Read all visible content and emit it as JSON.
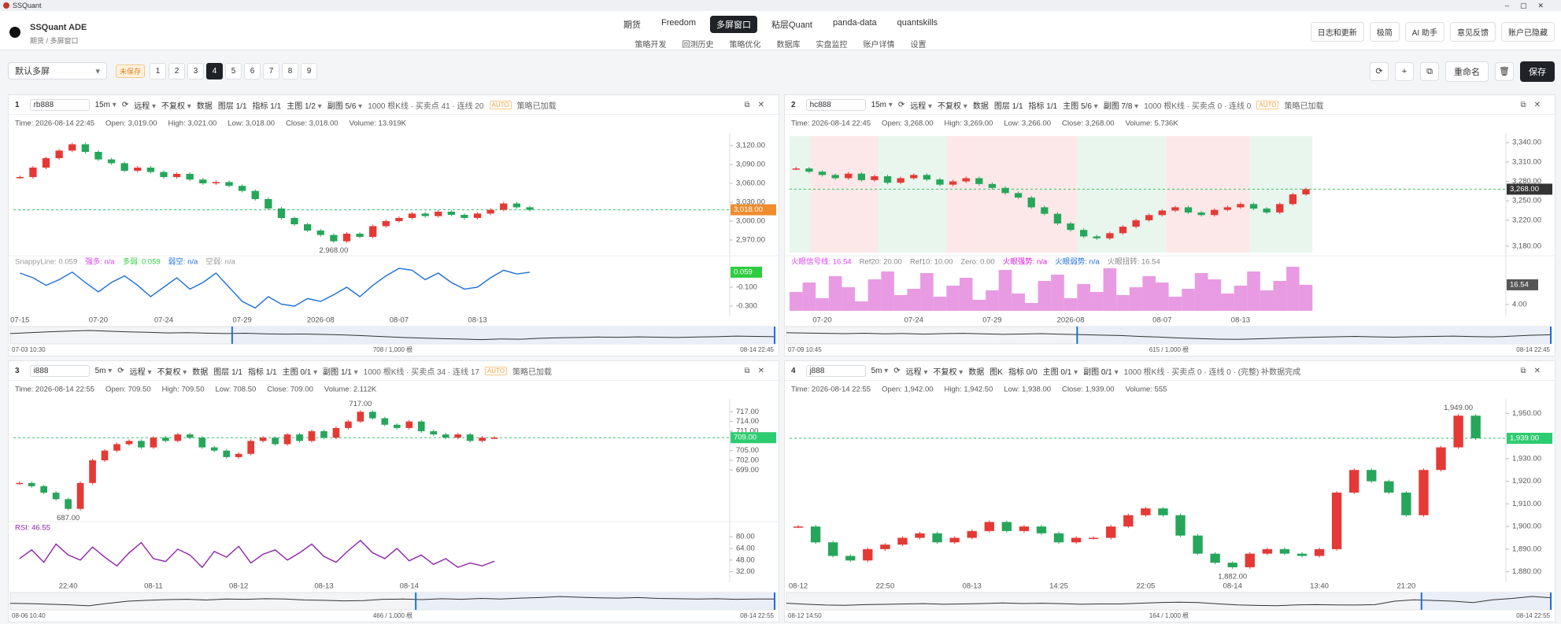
{
  "window": {
    "title": "SSQuant"
  },
  "app": {
    "name": "SSQuant ADE",
    "crumb": "期货 / 多屏窗口"
  },
  "nav": {
    "primary": [
      "期货",
      "Freedom",
      "多屏窗口",
      "粘层Quant",
      "panda-data",
      "quantskills"
    ],
    "active": 2,
    "secondary": [
      "策略开发",
      "回测历史",
      "策略优化",
      "数据库",
      "实盘监控",
      "账户详情",
      "设置"
    ]
  },
  "actions": [
    "日志和更新",
    "极简",
    "AI 助手",
    "意见反馈",
    "账户已隐藏"
  ],
  "toolbar": {
    "layout": "默认多屏",
    "status": "未保存",
    "screens": [
      1,
      2,
      3,
      4,
      5,
      6,
      7,
      8,
      9
    ],
    "active_screen": 4,
    "rename": "重命名",
    "save": "保存"
  },
  "panels": [
    {
      "index": 1,
      "symbol": "rb888",
      "interval": "15m",
      "source": "远程",
      "adjust": "不复权",
      "data": "数据",
      "layer": "图层 1/1",
      "indicator": "指标 1/1",
      "main": "主图 1/2",
      "sub": "副图 5/6",
      "summary": "1000 根K线 · 买卖点 41 · 连线 20",
      "auto": "AUTO",
      "status": "策略已加载",
      "info": [
        "Time: 2026-08-14 22:45",
        "Open: 3,019.00",
        "High: 3,021.00",
        "Low: 3,018.00",
        "Close: 3,018.00",
        "Volume: 13.919K"
      ],
      "categories": [
        "07-15",
        null,
        null,
        null,
        null,
        null,
        "07-20",
        null,
        null,
        null,
        null,
        "07-24",
        null,
        null,
        null,
        null,
        null,
        "07-29",
        null,
        null,
        null,
        null,
        null,
        "2026-08",
        null,
        null,
        null,
        null,
        null,
        "08-07",
        null,
        null,
        null,
        null,
        null,
        "08-13",
        null,
        null,
        null,
        null
      ],
      "price": {
        "up_color": "#e53935",
        "down_color": "#26a65b",
        "tag_color": "#f08c2e",
        "values": [
          3070,
          3085,
          3100,
          3112,
          3122,
          3110,
          3098,
          3092,
          3080,
          3085,
          3078,
          3070,
          3075,
          3066,
          3060,
          3062,
          3056,
          3048,
          3035,
          3020,
          3005,
          2995,
          2985,
          2978,
          2968,
          2980,
          2975,
          2992,
          3000,
          3005,
          3012,
          3008,
          3015,
          3010,
          3005,
          3012,
          3018,
          3028,
          3022,
          3018
        ],
        "value_labels": [
          null,
          null,
          null,
          null,
          null,
          null,
          null,
          null,
          null,
          null,
          null,
          null,
          null,
          null,
          null,
          null,
          null,
          null,
          null,
          null,
          null,
          null,
          null,
          null,
          "2,968.00",
          null,
          null,
          null,
          null,
          null,
          null,
          null,
          null,
          null,
          null,
          null,
          null,
          null,
          null,
          "3,018.00"
        ],
        "ylim": [
          2950,
          3135
        ],
        "yticks": [
          {
            "value": 3120,
            "label": "3,120.00"
          },
          {
            "value": 3090,
            "label": "3,090.00"
          },
          {
            "value": 3060,
            "label": "3,060.00"
          },
          {
            "value": 3030,
            "label": "3,030.00"
          },
          {
            "value": 3000,
            "label": "3,000.00"
          },
          {
            "value": 2970,
            "label": "2,970.00"
          }
        ]
      },
      "sub_chart": {
        "style": "line",
        "color": "#1e6fd9",
        "tag_color": "#2ecc40",
        "labels": [
          {
            "text": "SnappyLine: 0.059",
            "color": "#999999"
          },
          {
            "text": "强多: n/a",
            "color": "#e040fb"
          },
          {
            "text": "多弱: 0.059",
            "color": "#2ecc40"
          },
          {
            "text": "弱空: n/a",
            "color": "#1e6fd9"
          },
          {
            "text": "空弱: n/a",
            "color": "#999999"
          }
        ],
        "values": [
          0.05,
          0,
          -0.08,
          -0.02,
          0.06,
          -0.05,
          -0.15,
          -0.05,
          0.02,
          -0.08,
          -0.2,
          -0.1,
          0,
          -0.12,
          -0.05,
          0.05,
          -0.1,
          -0.25,
          -0.32,
          -0.2,
          -0.28,
          -0.3,
          -0.22,
          -0.25,
          -0.18,
          -0.1,
          -0.2,
          -0.08,
          0.02,
          0.1,
          0.08,
          -0.02,
          0.05,
          -0.05,
          -0.12,
          -0.1,
          0,
          0.08,
          0.04,
          0.059
        ],
        "value_labels": [
          null,
          null,
          null,
          null,
          null,
          null,
          null,
          null,
          null,
          null,
          null,
          null,
          null,
          null,
          null,
          null,
          null,
          null,
          null,
          null,
          null,
          null,
          null,
          null,
          null,
          null,
          null,
          null,
          null,
          null,
          null,
          null,
          null,
          null,
          null,
          null,
          null,
          null,
          null,
          "0.059"
        ],
        "ylim": [
          -0.35,
          0.15
        ],
        "yticks": [
          {
            "value": -0.1,
            "label": "-0.100"
          },
          {
            "value": -0.3,
            "label": "-0.300"
          }
        ]
      },
      "navigator": {
        "start": "07-03 10:30",
        "count": "708 / 1,000 根",
        "end": "08-14 22:45"
      }
    },
    {
      "index": 2,
      "symbol": "hc888",
      "interval": "15m",
      "source": "远程",
      "adjust": "不复权",
      "data": "数据",
      "layer": "图层 1/1",
      "indicator": "指标 1/1",
      "main": "主图 5/6",
      "sub": "副图 7/8",
      "summary": "1000 根K线 · 买卖点 0 · 连线 0",
      "auto": "AUTO",
      "status": "策略已加载",
      "info": [
        "Time: 2026-08-14 22:45",
        "Open: 3,268.00",
        "High: 3,269.00",
        "Low: 3,266.00",
        "Close: 3,268.00",
        "Volume: 5.736K"
      ],
      "categories": [
        null,
        null,
        "07-20",
        null,
        null,
        null,
        null,
        null,
        null,
        "07-24",
        null,
        null,
        null,
        null,
        null,
        "07-29",
        null,
        null,
        null,
        null,
        null,
        "2026-08",
        null,
        null,
        null,
        null,
        null,
        null,
        "08-07",
        null,
        null,
        null,
        null,
        null,
        "08-13",
        null,
        null,
        null,
        null,
        null
      ],
      "price": {
        "up_color": "#e53935",
        "down_color": "#26a65b",
        "tag_color": "#333333",
        "values": [
          3300,
          3295,
          3290,
          3285,
          3292,
          3282,
          3288,
          3278,
          3285,
          3290,
          3283,
          3275,
          3280,
          3285,
          3276,
          3270,
          3262,
          3255,
          3240,
          3230,
          3215,
          3205,
          3195,
          3192,
          3200,
          3210,
          3220,
          3228,
          3235,
          3240,
          3232,
          3228,
          3236,
          3240,
          3245,
          3238,
          3232,
          3245,
          3260,
          3268
        ],
        "value_labels": [
          null,
          null,
          null,
          null,
          null,
          null,
          null,
          null,
          null,
          null,
          null,
          null,
          null,
          null,
          null,
          null,
          null,
          null,
          null,
          null,
          null,
          null,
          null,
          null,
          null,
          null,
          null,
          null,
          null,
          null,
          null,
          null,
          null,
          null,
          null,
          null,
          null,
          null,
          null,
          "3,268.00"
        ],
        "ylim": [
          3170,
          3350
        ],
        "yticks": [
          {
            "value": 3340,
            "label": "3,340.00"
          },
          {
            "value": 3310,
            "label": "3,310.00"
          },
          {
            "value": 3280,
            "label": "3,280.00"
          },
          {
            "value": 3250,
            "label": "3,250.00"
          },
          {
            "value": 3220,
            "label": "3,220.00"
          },
          {
            "value": 3180,
            "label": "3,180.00"
          }
        ]
      },
      "sub_chart": {
        "style": "bars",
        "color": "#e07ad8",
        "tag_color": "#555555",
        "labels": [
          {
            "text": "火眼信号线: 16.54",
            "color": "#e040fb"
          },
          {
            "text": "Ref20: 20.00",
            "color": "#888888"
          },
          {
            "text": "Ref10: 10.00",
            "color": "#888888"
          },
          {
            "text": "Zero: 0.00",
            "color": "#888888"
          },
          {
            "text": "火眼强势: n/a",
            "color": "#d81bd8"
          },
          {
            "text": "火眼弱势: n/a",
            "color": "#1e6fd9"
          },
          {
            "text": "火眼扭转: 16.54",
            "color": "#888888"
          }
        ],
        "values": [
          12,
          18,
          8,
          22,
          15,
          6,
          20,
          25,
          10,
          14,
          24,
          9,
          16,
          21,
          7,
          13,
          26,
          11,
          5,
          19,
          23,
          8,
          17,
          12,
          27,
          10,
          15,
          22,
          18,
          9,
          14,
          24,
          20,
          11,
          16,
          25,
          13,
          19,
          28,
          16.54
        ],
        "value_labels": [
          null,
          null,
          null,
          null,
          null,
          null,
          null,
          null,
          null,
          null,
          null,
          null,
          null,
          null,
          null,
          null,
          null,
          null,
          null,
          null,
          null,
          null,
          null,
          null,
          null,
          null,
          null,
          null,
          null,
          null,
          null,
          null,
          null,
          null,
          null,
          null,
          null,
          null,
          null,
          "16.54"
        ],
        "ylim": [
          0,
          30
        ],
        "yticks": [
          {
            "value": 4,
            "label": "4.00"
          }
        ]
      },
      "navigator": {
        "start": "07-09 10:45",
        "count": "615 / 1,000 根",
        "end": "08-14 22:45"
      }
    },
    {
      "index": 3,
      "symbol": "i888",
      "interval": "5m",
      "source": "远程",
      "adjust": "不复权",
      "data": "数据",
      "layer": "图层 1/1",
      "indicator": "指标 1/1",
      "main": "主图 0/1",
      "sub": "副图 1/1",
      "summary": "1000 根K线 · 买卖点 34 · 连线 17",
      "auto": "AUTO",
      "status": "策略已加载",
      "info": [
        "Time: 2026-08-14 22:55",
        "Open: 709.50",
        "High: 709.50",
        "Low: 708.50",
        "Close: 709.00",
        "Volume: 2.112K"
      ],
      "categories": [
        null,
        null,
        null,
        null,
        "22:40",
        null,
        null,
        null,
        null,
        null,
        null,
        "08-11",
        null,
        null,
        null,
        null,
        null,
        null,
        "08-12",
        null,
        null,
        null,
        null,
        null,
        null,
        "08-13",
        null,
        null,
        null,
        null,
        null,
        null,
        "08-14",
        null,
        null,
        null,
        null,
        null,
        null,
        null
      ],
      "price": {
        "up_color": "#e53935",
        "down_color": "#26a65b",
        "tag_color": "#2ecc71",
        "values": [
          695,
          694,
          692,
          690,
          687,
          695,
          702,
          705,
          707,
          708,
          706,
          709,
          708,
          710,
          709,
          706,
          705,
          703,
          704,
          708,
          709,
          707,
          710,
          708,
          711,
          709,
          712,
          714,
          717,
          715,
          713,
          712,
          714,
          711,
          710,
          709,
          710,
          708,
          709,
          709
        ],
        "value_labels": [
          null,
          null,
          null,
          null,
          "687.00",
          null,
          null,
          null,
          null,
          null,
          null,
          null,
          null,
          null,
          null,
          null,
          null,
          null,
          null,
          null,
          null,
          null,
          null,
          null,
          null,
          null,
          null,
          null,
          "717.00",
          null,
          null,
          null,
          null,
          null,
          null,
          null,
          null,
          null,
          null,
          "709.00"
        ],
        "ylim": [
          684,
          720
        ],
        "yticks": [
          {
            "value": 717,
            "label": "717.00"
          },
          {
            "value": 714,
            "label": "714.00"
          },
          {
            "value": 711,
            "label": "711.00"
          },
          {
            "value": 705,
            "label": "705.00"
          },
          {
            "value": 702,
            "label": "702.00"
          },
          {
            "value": 699,
            "label": "699.00"
          }
        ]
      },
      "sub_chart": {
        "style": "line",
        "color": "#8e24aa",
        "labels": [
          {
            "text": "RSI: 46.55",
            "color": "#8e24aa"
          }
        ],
        "values": [
          50,
          62,
          45,
          70,
          55,
          48,
          66,
          52,
          40,
          58,
          72,
          50,
          46,
          63,
          55,
          38,
          60,
          52,
          67,
          44,
          56,
          62,
          48,
          58,
          70,
          53,
          45,
          61,
          75,
          58,
          50,
          64,
          47,
          55,
          42,
          50,
          38,
          44,
          40,
          46.55
        ],
        "ylim": [
          25,
          90
        ],
        "yticks": [
          {
            "value": 80,
            "label": "80.00"
          },
          {
            "value": 64,
            "label": "64.00"
          },
          {
            "value": 48,
            "label": "48.00"
          },
          {
            "value": 32,
            "label": "32.00"
          }
        ]
      },
      "navigator": {
        "start": "08-06 10:40",
        "count": "466 / 1,000 根",
        "end": "08-14 22:55"
      }
    },
    {
      "index": 4,
      "symbol": "j888",
      "interval": "5m",
      "source": "远程",
      "adjust": "不复权",
      "data": "数据",
      "layer": "图K",
      "indicator": "指标 0/0",
      "main": "主图 0/1",
      "sub": "副图 0/1",
      "summary": "1000 根K线 · 买卖点 0 · 连线 0 · (完整) 补数据完成",
      "info": [
        "Time: 2026-08-14 22:55",
        "Open: 1,942.00",
        "High: 1,942.50",
        "Low: 1,938.00",
        "Close: 1,939.00",
        "Volume: 555"
      ],
      "categories": [
        "08-12",
        null,
        null,
        null,
        null,
        "22:50",
        null,
        null,
        null,
        null,
        "08-13",
        null,
        null,
        null,
        null,
        "14:25",
        null,
        null,
        null,
        null,
        "22:05",
        null,
        null,
        null,
        null,
        "08-14",
        null,
        null,
        null,
        null,
        "13:40",
        null,
        null,
        null,
        null,
        "21:20",
        null,
        null,
        null,
        null
      ],
      "price": {
        "up_color": "#e53935",
        "down_color": "#26a65b",
        "tag_color": "#2ecc71",
        "values": [
          1900,
          1893,
          1887,
          1885,
          1890,
          1892,
          1895,
          1897,
          1893,
          1895,
          1898,
          1902,
          1898,
          1900,
          1897,
          1893,
          1895,
          1895,
          1900,
          1905,
          1908,
          1905,
          1896,
          1888,
          1884,
          1882,
          1888,
          1890,
          1888,
          1887,
          1890,
          1915,
          1925,
          1920,
          1915,
          1905,
          1925,
          1935,
          1949,
          1939
        ],
        "value_labels": [
          null,
          null,
          null,
          null,
          null,
          null,
          null,
          null,
          null,
          null,
          null,
          null,
          null,
          null,
          null,
          null,
          null,
          null,
          null,
          null,
          null,
          null,
          null,
          null,
          null,
          "1,882.00",
          null,
          null,
          null,
          null,
          null,
          null,
          null,
          null,
          null,
          null,
          null,
          null,
          "1,949.00",
          "1,939.00"
        ],
        "ylim": [
          1875,
          1955
        ],
        "yticks": [
          {
            "value": 1950,
            "label": "1,950.00"
          },
          {
            "value": 1940,
            "label": "1,940.00"
          },
          {
            "value": 1930,
            "label": "1,930.00"
          },
          {
            "value": 1920,
            "label": "1,920.00"
          },
          {
            "value": 1910,
            "label": "1,910.00"
          },
          {
            "value": 1900,
            "label": "1,900.00"
          },
          {
            "value": 1890,
            "label": "1,890.00"
          },
          {
            "value": 1880,
            "label": "1,880.00"
          }
        ]
      },
      "navigator": {
        "start": "08-12 14:50",
        "count": "164 / 1,000 根",
        "end": "08-14 22:55"
      }
    }
  ]
}
